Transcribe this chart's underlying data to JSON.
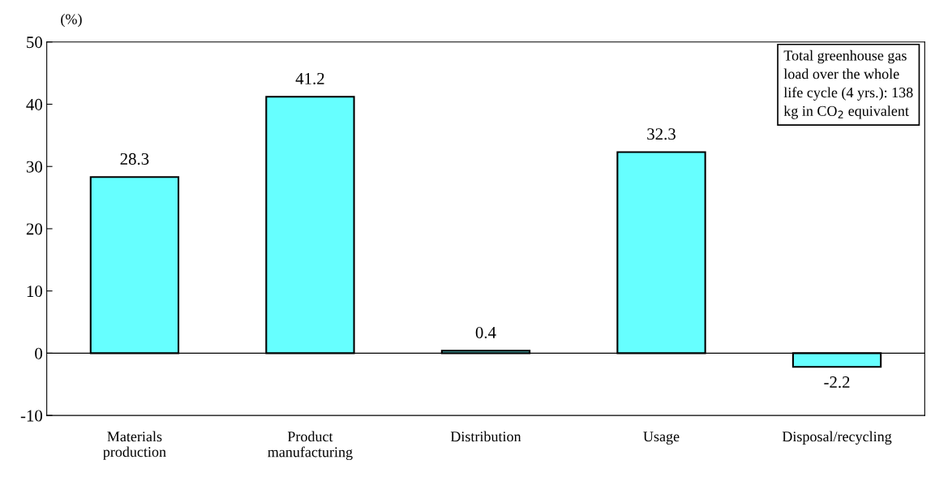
{
  "chart_data": {
    "type": "bar",
    "ylabel": "(%)",
    "categories": [
      "Materials production",
      "Product manufacturing",
      "Distribution",
      "Usage",
      "Disposal/recycling"
    ],
    "values": [
      28.3,
      41.2,
      0.4,
      32.3,
      -2.2
    ],
    "color": "#66ffff",
    "data_labels": true,
    "ylim": [
      -10,
      50
    ],
    "yticks": [
      -10,
      0,
      10,
      20,
      30,
      40,
      50
    ],
    "annotations": [
      "Total greenhouse gas\nload over the whole\nlife cycle (4 yrs.): 138\nkg in CO$_{2}$ equivalent"
    ],
    "ref_lines": [
      {
        "axis": "y",
        "value": 0,
        "color": "#000000"
      }
    ]
  }
}
